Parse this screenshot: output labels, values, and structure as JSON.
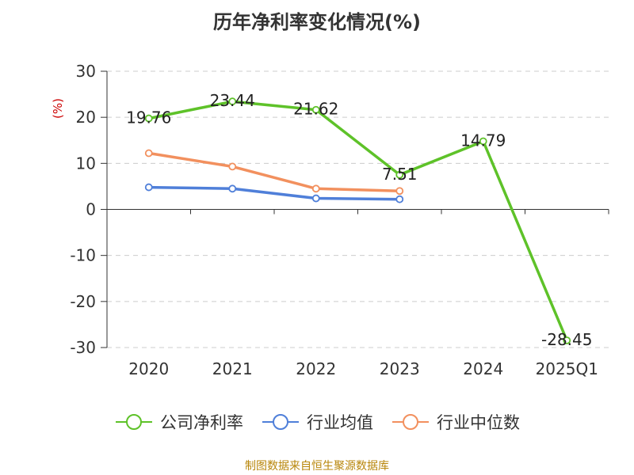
{
  "title": "历年净利率变化情况(%)",
  "source": "制图数据来自恒生聚源数据库",
  "chart_data": {
    "type": "line",
    "title": "历年净利率变化情况(%)",
    "ylabel": "(%)",
    "xlabel": "",
    "categories": [
      "2020",
      "2021",
      "2022",
      "2023",
      "2024",
      "2025Q1"
    ],
    "ylim": [
      -30,
      30
    ],
    "yticks": [
      30,
      20,
      10,
      0,
      -10,
      -20,
      -30
    ],
    "grid": true,
    "legend_position": "bottom",
    "series": [
      {
        "name": "公司净利率",
        "color": "#5ec229",
        "values": [
          19.76,
          23.44,
          21.62,
          7.51,
          14.79,
          -28.45
        ],
        "labels": [
          "19.76",
          "23.44",
          "21.62",
          "7.51",
          "14.79",
          "-28.45"
        ]
      },
      {
        "name": "行业均值",
        "color": "#4f7fd9",
        "values": [
          4.8,
          4.5,
          2.4,
          2.2,
          null,
          null
        ]
      },
      {
        "name": "行业中位数",
        "color": "#f2905e",
        "values": [
          12.2,
          9.3,
          4.5,
          4.0,
          null,
          null
        ]
      }
    ]
  }
}
